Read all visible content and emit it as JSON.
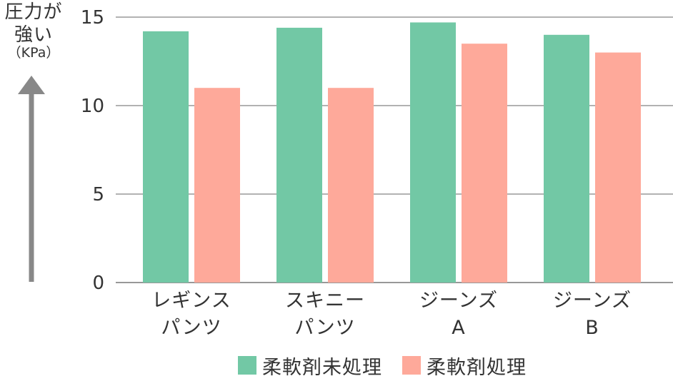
{
  "y_axis_label": {
    "line1": "圧力が",
    "line2": "強い",
    "unit": "（KPa）"
  },
  "chart_data": {
    "type": "bar",
    "categories": [
      [
        "レギンス",
        "パンツ"
      ],
      [
        "スキニー",
        "パンツ"
      ],
      [
        "ジーンズ",
        "A"
      ],
      [
        "ジーンズ",
        "B"
      ]
    ],
    "series": [
      {
        "name": "柔軟剤未処理",
        "color": "#72c8a5",
        "values": [
          14.2,
          14.4,
          14.7,
          14.0
        ]
      },
      {
        "name": "柔軟剤処理",
        "color": "#fea99a",
        "values": [
          11.0,
          11.0,
          13.5,
          13.0
        ]
      }
    ],
    "yticks": [
      0,
      5,
      10,
      15
    ],
    "ylim": [
      0,
      15
    ],
    "grid": true,
    "legend_position": "bottom",
    "gridline_color": "#999999",
    "arrow_color": "#888888"
  }
}
